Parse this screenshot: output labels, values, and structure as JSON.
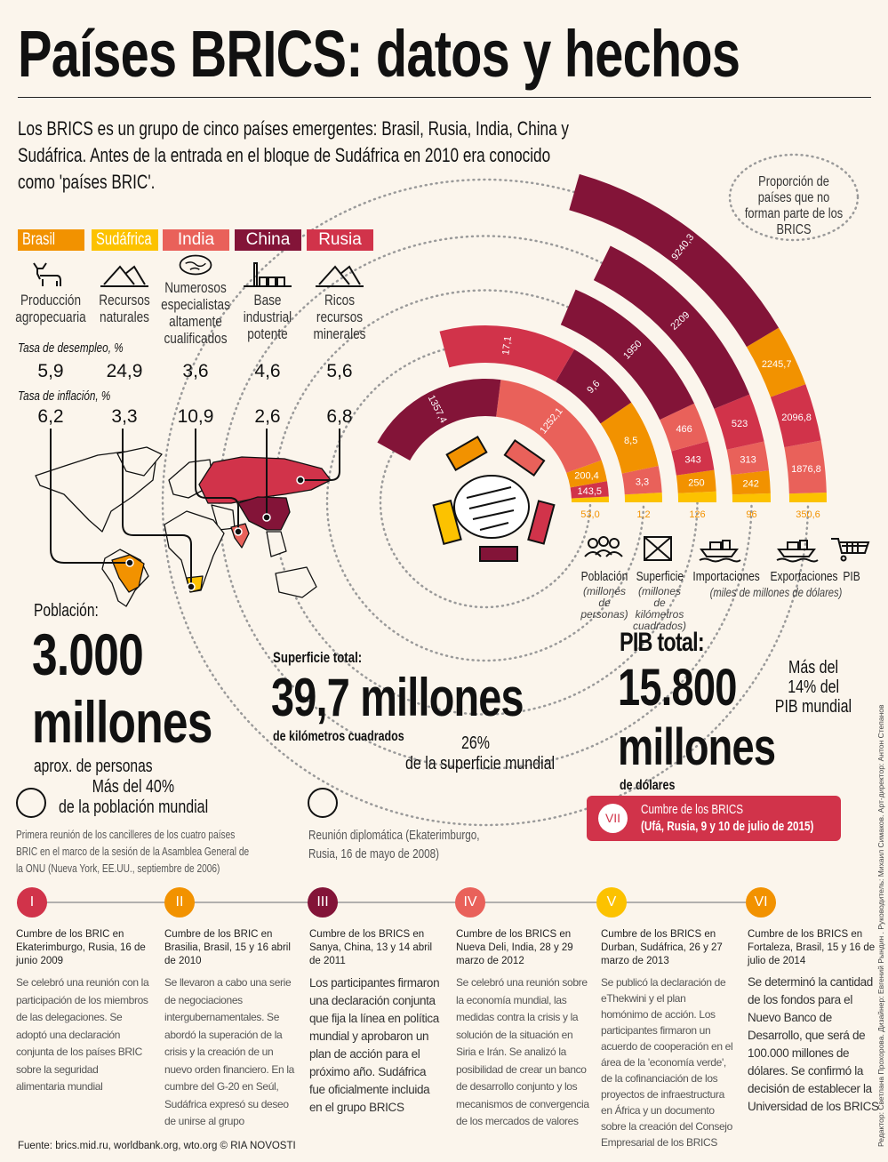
{
  "title": "Países BRICS: datos y hechos",
  "intro": "Los BRICS es un grupo de cinco países emergentes: Brasil, Rusia, India, China y Sudáfrica. Antes de la entrada en el bloque de Sudáfrica en 2010 era conocido como 'países BRIC'.",
  "colors": {
    "brasil": "#f29200",
    "sudafrica": "#fcc200",
    "india": "#e9615a",
    "china": "#831438",
    "rusia": "#d1334a",
    "background": "#fbf5ec",
    "dotted": "#9a9a9a"
  },
  "countries": [
    {
      "key": "brasil",
      "name": "Brasil",
      "icon": "cow-icon",
      "feature": "Producción agropecuaria",
      "unemployment": "5,9",
      "inflation": "6,2"
    },
    {
      "key": "sudafrica",
      "name": "Sudáfrica",
      "icon": "mountains-icon",
      "feature": "Recursos naturales",
      "unemployment": "24,9",
      "inflation": "3,3"
    },
    {
      "key": "india",
      "name": "India",
      "icon": "brain-icon",
      "feature": "Numerosos especialistas altamente cualificados",
      "unemployment": "3,6",
      "inflation": "10,9"
    },
    {
      "key": "china",
      "name": "China",
      "icon": "factory-icon",
      "feature": "Base industrial potente",
      "unemployment": "4,6",
      "inflation": "2,6"
    },
    {
      "key": "rusia",
      "name": "Rusia",
      "icon": "mountains-icon",
      "feature": "Ricos recursos minerales",
      "unemployment": "5,6",
      "inflation": "6,8"
    }
  ],
  "rates": {
    "unemployment_title": "Tasa de desempleo, %",
    "inflation_title": "Tasa de inflación, %"
  },
  "chart_data": {
    "type": "radial-bar",
    "note": "Proporción de países que no forman parte de los BRICS",
    "rings": [
      {
        "name": "Población",
        "unit": "(millones de personas)",
        "icon": "people-icon",
        "segments": [
          {
            "country": "sudafrica",
            "value": "53,0"
          },
          {
            "country": "rusia",
            "value": "143,5"
          },
          {
            "country": "brasil",
            "value": "200,4"
          },
          {
            "country": "india",
            "value": "1252,1"
          },
          {
            "country": "china",
            "value": "1357,4"
          }
        ]
      },
      {
        "name": "Superficie",
        "unit": "(millones de kilómetros cuadrados)",
        "icon": "area-icon",
        "segments": [
          {
            "country": "sudafrica",
            "value": "1,2"
          },
          {
            "country": "india",
            "value": "3,3"
          },
          {
            "country": "brasil",
            "value": "8,5"
          },
          {
            "country": "china",
            "value": "9,6"
          },
          {
            "country": "rusia",
            "value": "17,1"
          }
        ]
      },
      {
        "name": "Importaciones",
        "icon": "ship-icon",
        "segments": [
          {
            "country": "sudafrica",
            "value": "126"
          },
          {
            "country": "brasil",
            "value": "250"
          },
          {
            "country": "rusia",
            "value": "343"
          },
          {
            "country": "india",
            "value": "466"
          },
          {
            "country": "china",
            "value": "1950"
          }
        ]
      },
      {
        "name": "Exportaciones",
        "icon": "ship-icon",
        "segments": [
          {
            "country": "sudafrica",
            "value": "96"
          },
          {
            "country": "brasil",
            "value": "242"
          },
          {
            "country": "india",
            "value": "313"
          },
          {
            "country": "rusia",
            "value": "523"
          },
          {
            "country": "china",
            "value": "2209"
          }
        ]
      },
      {
        "name": "PIB",
        "icon": "cart-icon",
        "segments": [
          {
            "country": "sudafrica",
            "value": "350,6"
          },
          {
            "country": "india",
            "value": "1876,8"
          },
          {
            "country": "rusia",
            "value": "2096,8"
          },
          {
            "country": "brasil",
            "value": "2245,7"
          },
          {
            "country": "china",
            "value": "9240,3"
          }
        ]
      }
    ],
    "trade_unit": "(miles de millones de dólares)"
  },
  "stats": {
    "population": {
      "label": "Población:",
      "value": "3.000",
      "unit": "millones",
      "sub": "aprox. de personas",
      "share1": "Más del 40%",
      "share2": "de la población mundial"
    },
    "area": {
      "label": "Superficie total:",
      "value": "39,7 millones",
      "sub": "de kilómetros cuadrados",
      "share1": "26%",
      "share2": "de la superficie mundial"
    },
    "gdp": {
      "label": "PIB total:",
      "value": "15.800",
      "unit": "millones",
      "sub": "de dólares",
      "share1": "Más del",
      "share2": "14% del",
      "share3": "PIB mundial"
    }
  },
  "early_events": [
    {
      "text": "Primera reunión de los cancilleres de los cuatro países BRIC en el marco de la sesión de la Asamblea General de la ONU (Nueva York, EE.UU., septiembre de 2006)"
    },
    {
      "text": "Reunión diplomática (Ekaterimburgo, Rusia, 16 de mayo de 2008)"
    }
  ],
  "upcoming": {
    "numeral": "VII",
    "line1": "Cumbre de los BRICS",
    "line2": "(Ufá, Rusia, 9 y 10 de julio de 2015)"
  },
  "summits": [
    {
      "numeral": "I",
      "color": "#d1334a",
      "head": "Cumbre de los BRIC en Ekaterimburgo, Rusia, 16 de junio 2009",
      "body": "Se celebró una reunión con la participación de los miembros de las delegaciones. Se adoptó una declaración conjunta de los países BRIC sobre la seguridad alimentaria mundial"
    },
    {
      "numeral": "II",
      "color": "#f29200",
      "head": "Cumbre de los BRIC en Brasilia, Brasil, 15 y 16 abril de 2010",
      "body": "Se llevaron a cabo una serie de negociaciones intergubernamentales. Se abordó la superación de la crisis y la creación de un nuevo orden financiero. En la cumbre del G-20 en Seúl, Sudáfrica expresó su deseo de unirse al grupo"
    },
    {
      "numeral": "III",
      "color": "#831438",
      "head": "Cumbre de los BRICS en Sanya, China, 13 y 14 abril de 2011",
      "body": "Los participantes firmaron una declaración conjunta que fija la línea en política mundial y aprobaron un plan de acción para el próximo año. Sudáfrica fue oficialmente incluida en el grupo BRICS"
    },
    {
      "numeral": "IV",
      "color": "#e9615a",
      "head": "Cumbre de los BRICS en Nueva Deli, India, 28 y 29 marzo de 2012",
      "body": "Se celebró una reunión sobre la economía mundial, las medidas contra la crisis y la solución de la situación en Siria e Irán. Se analizó la posibilidad de crear un banco de desarrollo conjunto y los mecanismos de convergencia de los mercados de valores"
    },
    {
      "numeral": "V",
      "color": "#fcc200",
      "head": "Cumbre de los BRICS en Durban, Sudáfrica, 26 y 27 marzo de 2013",
      "body": "Se publicó la declaración de eThekwini y el plan homónimo de acción. Los participantes firmaron un acuerdo de cooperación en el área de la 'economía verde', de la cofinanciación de los proyectos de infraestructura en África y un documento sobre la creación del Consejo Empresarial de los BRICS"
    },
    {
      "numeral": "VI",
      "color": "#f29200",
      "head": "Cumbre de los BRICS en Fortaleza, Brasil, 15 y 16 de julio de 2014",
      "body": "Se determinó la cantidad de los fondos para el Nuevo Banco de Desarrollo, que será de 100.000 millones de dólares. Se confirmó la decisión de establecer la Universidad de los BRICS"
    }
  ],
  "source": "Fuente: brics.mid.ru, worldbank.org, wto.org © RIA NOVOSTI",
  "credits": "Редактор: Светлана Прохорова. Дизайнер: Евгений Рындин . Руководитель: Михаил Симаков. Арт-директор: Антон Степанов"
}
